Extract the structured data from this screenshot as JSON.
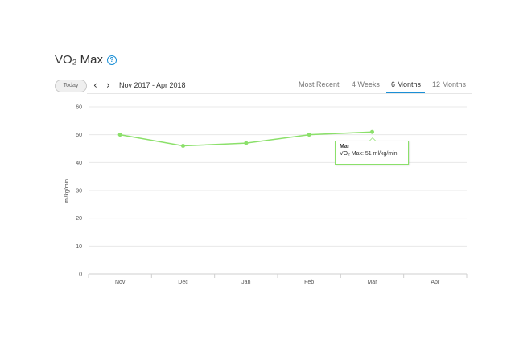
{
  "header": {
    "title": "VO₂ Max",
    "help_icon": "help-circle-icon",
    "today_label": "Today",
    "prev_icon": "chevron-left-icon",
    "next_icon": "chevron-right-icon",
    "date_range": "Nov 2017 - Apr 2018"
  },
  "tabs": [
    {
      "label": "Most Recent",
      "active": false
    },
    {
      "label": "4 Weeks",
      "active": false
    },
    {
      "label": "6 Months",
      "active": true
    },
    {
      "label": "12 Months",
      "active": false
    }
  ],
  "tooltip": {
    "title": "Mar",
    "text": "VO₂ Max: 51 ml/kg/min"
  },
  "colors": {
    "line": "#8be06a",
    "accent": "#1a8fd6",
    "grid": "#e8e8e8"
  },
  "chart_data": {
    "type": "line",
    "categories": [
      "Nov",
      "Dec",
      "Jan",
      "Feb",
      "Mar",
      "Apr"
    ],
    "series": [
      {
        "values": [
          50,
          46,
          47,
          50,
          51,
          null
        ]
      }
    ],
    "title": "",
    "xlabel": "",
    "ylabel": "ml/kg/min",
    "ylim": [
      0,
      60
    ],
    "yticks": [
      0,
      10,
      20,
      30,
      40,
      50,
      60
    ],
    "grid": true,
    "legend": "none"
  }
}
